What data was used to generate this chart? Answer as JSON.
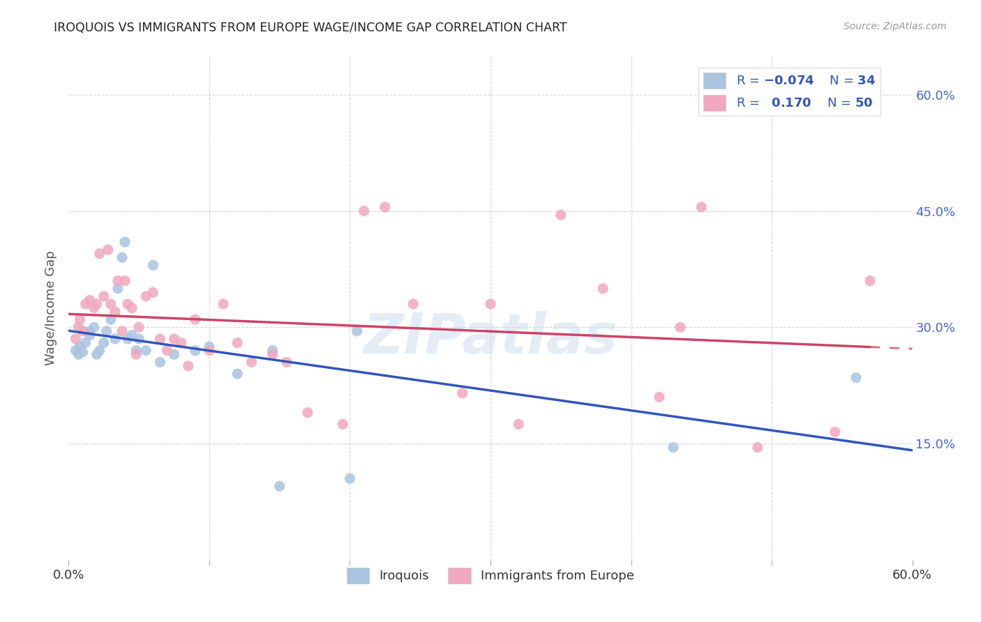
{
  "title": "IROQUOIS VS IMMIGRANTS FROM EUROPE WAGE/INCOME GAP CORRELATION CHART",
  "source_text": "Source: ZipAtlas.com",
  "ylabel": "Wage/Income Gap",
  "xlim": [
    0.0,
    0.6
  ],
  "ylim": [
    0.0,
    0.65
  ],
  "grid_color": "#cccccc",
  "background_color": "#ffffff",
  "watermark": "ZIPatlas",
  "iroquois_color": "#aac4e0",
  "immigrants_color": "#f0a8be",
  "iroquois_line_color": "#3355bb",
  "immigrants_line_color": "#cc4466",
  "legend_N_iroquois": "34",
  "legend_R_immigrants": "0.170",
  "legend_N_immigrants": "50",
  "iroquois_x": [
    0.005,
    0.007,
    0.008,
    0.01,
    0.012,
    0.015,
    0.015,
    0.018,
    0.02,
    0.022,
    0.025,
    0.027,
    0.03,
    0.033,
    0.035,
    0.038,
    0.04,
    0.042,
    0.045,
    0.048,
    0.05,
    0.055,
    0.06,
    0.065,
    0.075,
    0.09,
    0.1,
    0.12,
    0.145,
    0.15,
    0.2,
    0.205,
    0.43,
    0.56
  ],
  "iroquois_y": [
    0.27,
    0.265,
    0.275,
    0.268,
    0.28,
    0.29,
    0.295,
    0.3,
    0.265,
    0.27,
    0.28,
    0.295,
    0.31,
    0.285,
    0.35,
    0.39,
    0.41,
    0.285,
    0.29,
    0.27,
    0.285,
    0.27,
    0.38,
    0.255,
    0.265,
    0.27,
    0.275,
    0.24,
    0.27,
    0.095,
    0.105,
    0.295,
    0.145,
    0.235
  ],
  "immigrants_x": [
    0.005,
    0.007,
    0.008,
    0.01,
    0.012,
    0.015,
    0.018,
    0.02,
    0.022,
    0.025,
    0.028,
    0.03,
    0.033,
    0.035,
    0.038,
    0.04,
    0.042,
    0.045,
    0.048,
    0.05,
    0.055,
    0.06,
    0.065,
    0.07,
    0.075,
    0.08,
    0.085,
    0.09,
    0.1,
    0.11,
    0.12,
    0.13,
    0.145,
    0.155,
    0.17,
    0.195,
    0.21,
    0.225,
    0.245,
    0.28,
    0.3,
    0.32,
    0.35,
    0.38,
    0.42,
    0.435,
    0.45,
    0.49,
    0.545,
    0.57
  ],
  "immigrants_y": [
    0.285,
    0.3,
    0.31,
    0.295,
    0.33,
    0.335,
    0.325,
    0.33,
    0.395,
    0.34,
    0.4,
    0.33,
    0.32,
    0.36,
    0.295,
    0.36,
    0.33,
    0.325,
    0.265,
    0.3,
    0.34,
    0.345,
    0.285,
    0.27,
    0.285,
    0.28,
    0.25,
    0.31,
    0.27,
    0.33,
    0.28,
    0.255,
    0.265,
    0.255,
    0.19,
    0.175,
    0.45,
    0.455,
    0.33,
    0.215,
    0.33,
    0.175,
    0.445,
    0.35,
    0.21,
    0.3,
    0.455,
    0.145,
    0.165,
    0.36
  ]
}
